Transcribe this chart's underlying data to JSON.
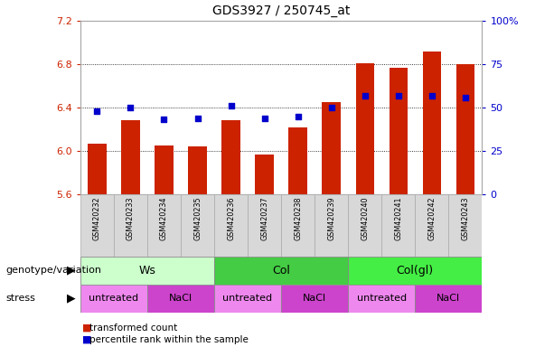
{
  "title": "GDS3927 / 250745_at",
  "samples": [
    "GSM420232",
    "GSM420233",
    "GSM420234",
    "GSM420235",
    "GSM420236",
    "GSM420237",
    "GSM420238",
    "GSM420239",
    "GSM420240",
    "GSM420241",
    "GSM420242",
    "GSM420243"
  ],
  "transformed_count": [
    6.07,
    6.28,
    6.05,
    6.04,
    6.28,
    5.97,
    6.22,
    6.45,
    6.81,
    6.77,
    6.92,
    6.8
  ],
  "percentile_rank": [
    48,
    50,
    43,
    44,
    51,
    44,
    45,
    50,
    57,
    57,
    57,
    56
  ],
  "ylim_left": [
    5.6,
    7.2
  ],
  "ylim_right": [
    0,
    100
  ],
  "yticks_left": [
    5.6,
    6.0,
    6.4,
    6.8,
    7.2
  ],
  "yticks_right": [
    0,
    25,
    50,
    75,
    100
  ],
  "bar_color": "#cc2200",
  "dot_color": "#0000cc",
  "grid_color": "#000000",
  "groups": [
    {
      "label": "Ws",
      "start": 0,
      "end": 3,
      "color": "#ccffcc"
    },
    {
      "label": "Col",
      "start": 4,
      "end": 7,
      "color": "#44cc44"
    },
    {
      "label": "Col(gl)",
      "start": 8,
      "end": 11,
      "color": "#44ee44"
    }
  ],
  "stress_groups": [
    {
      "label": "untreated",
      "start": 0,
      "end": 1,
      "color": "#ee88ee"
    },
    {
      "label": "NaCl",
      "start": 2,
      "end": 3,
      "color": "#cc44cc"
    },
    {
      "label": "untreated",
      "start": 4,
      "end": 5,
      "color": "#ee88ee"
    },
    {
      "label": "NaCl",
      "start": 6,
      "end": 7,
      "color": "#cc44cc"
    },
    {
      "label": "untreated",
      "start": 8,
      "end": 9,
      "color": "#ee88ee"
    },
    {
      "label": "NaCl",
      "start": 10,
      "end": 11,
      "color": "#cc44cc"
    }
  ],
  "legend_items": [
    {
      "label": "transformed count",
      "color": "#cc2200"
    },
    {
      "label": "percentile rank within the sample",
      "color": "#0000cc"
    }
  ],
  "left_axis_color": "#cc2200",
  "right_axis_color": "#0000cc",
  "genotype_label": "genotype/variation",
  "stress_label": "stress",
  "label_bg": "#d8d8d8",
  "label_edge": "#aaaaaa"
}
